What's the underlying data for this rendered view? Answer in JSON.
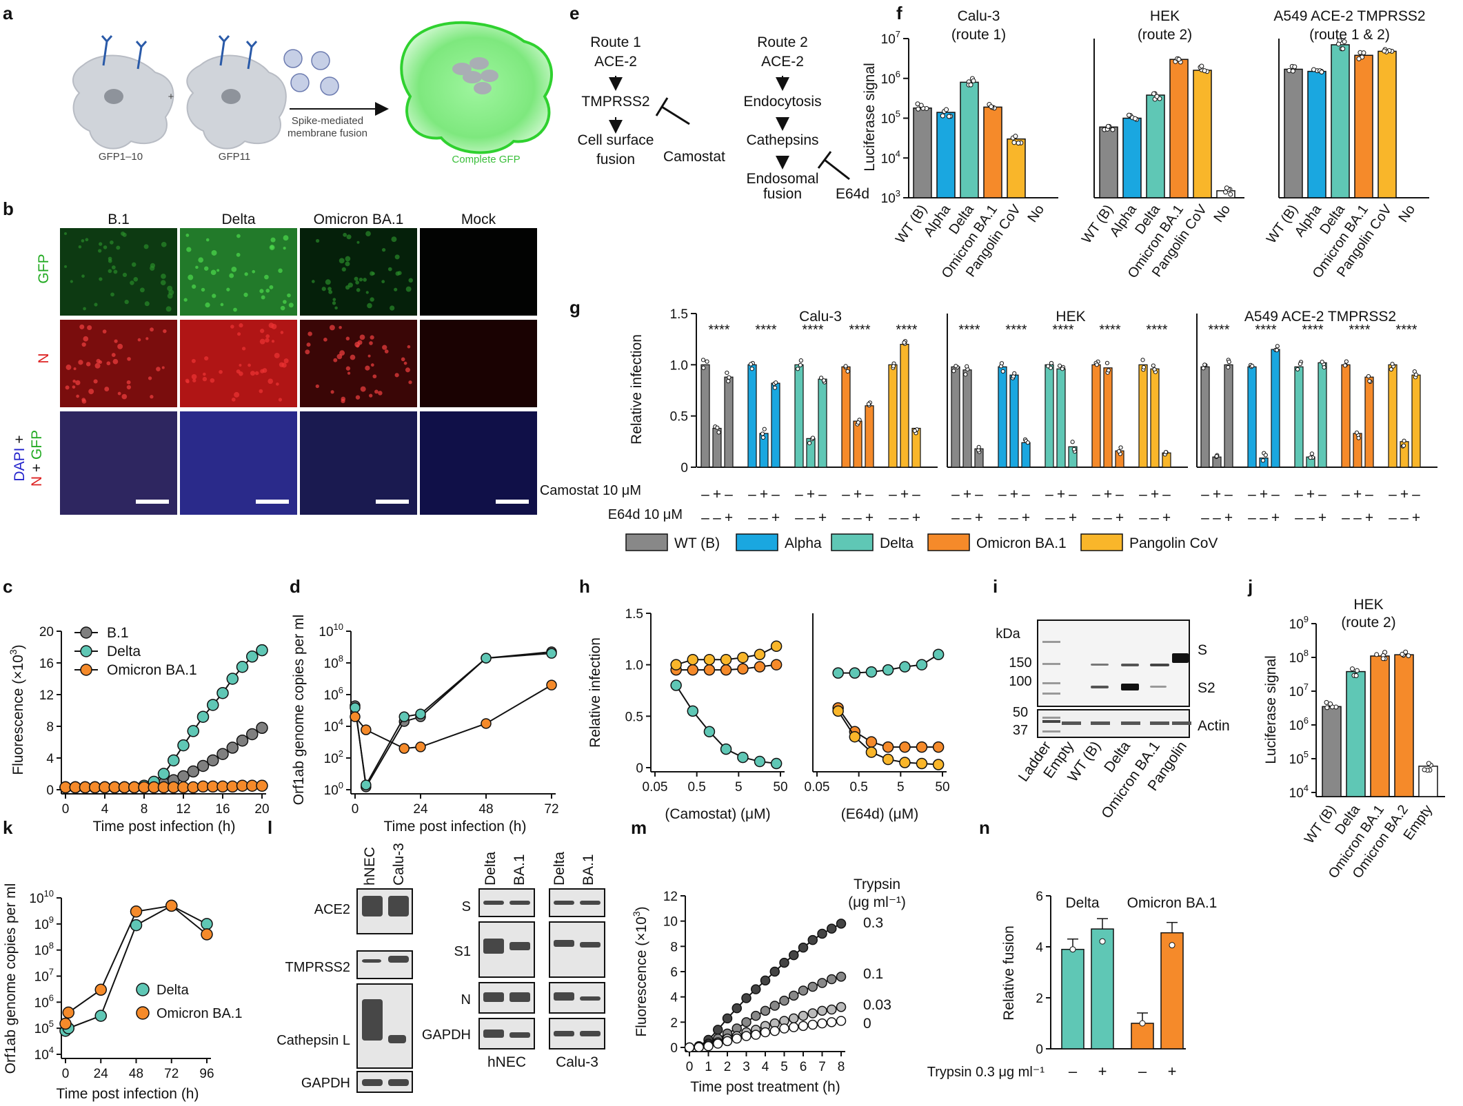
{
  "figure": {
    "panel_labels": {
      "a": "a",
      "b": "b",
      "c": "c",
      "d": "d",
      "e": "e",
      "f": "f",
      "g": "g",
      "h": "h",
      "i": "i",
      "j": "j",
      "k": "k",
      "l": "l",
      "m": "m",
      "n": "n"
    },
    "panel_a": {
      "cell1": "GFP1–10",
      "plus": "+",
      "cell2": "GFP11",
      "arrow_text_1": "Spike-mediated",
      "arrow_text_2": "membrane fusion",
      "result": "Complete GFP"
    },
    "panel_b": {
      "columns": [
        "B.1",
        "Delta",
        "Omicron BA.1",
        "Mock"
      ],
      "row_gfp": "GFP",
      "row_n": "N",
      "row_merge_dapi": "DAPI",
      "row_merge_plus1": " +",
      "row_merge_n": "N",
      "row_merge_plus2": " + ",
      "row_merge_gfp": "GFP",
      "colors": {
        "gfp": "#22aa22",
        "n": "#dd2222",
        "dapi": "#2222cc"
      }
    },
    "panel_e": {
      "route1": [
        "Route 1",
        "ACE-2",
        "TMPRSS2",
        "Cell surface",
        "fusion"
      ],
      "route2": [
        "Route 2",
        "ACE-2",
        "Endocytosis",
        "Cathepsins",
        "Endosomal",
        "fusion"
      ],
      "inhib1": "Camostat",
      "inhib2": "E64d"
    },
    "panel_f": {
      "ylabel": "Luciferase signal",
      "yticks": [
        "10",
        "10",
        "10",
        "10",
        "10"
      ],
      "yexp": [
        "3",
        "4",
        "5",
        "6",
        "7"
      ]
    },
    "panel_g": {
      "ylabel": "Relative infection",
      "yticks": [
        "0",
        "0.5",
        "1.0",
        "1.5"
      ],
      "row_camostat": "Camostat 10 μM",
      "row_e64d": "E64d 10 μM",
      "sig": "****",
      "plus": "+",
      "minus": "–"
    },
    "legend_g": [
      "WT (B)",
      "Alpha",
      "Delta",
      "Omicron BA.1",
      "Pangolin CoV"
    ],
    "panel_c": {
      "ylabel_main": "Fluorescence (×10",
      "ylabel_exp": "3",
      "ylabel_close": ")",
      "xlabel": "Time post infection (h)",
      "xticks": [
        "0",
        "4",
        "8",
        "12",
        "16",
        "20"
      ],
      "yticks": [
        "0",
        "4",
        "8",
        "12",
        "16",
        "20"
      ]
    },
    "panel_d": {
      "ylabel": "Orf1ab genome copies per ml",
      "xlabel": "Time post infection (h)",
      "xticks": [
        "0",
        "24",
        "48",
        "72"
      ],
      "yexp": [
        "0",
        "2",
        "4",
        "6",
        "8",
        "10"
      ],
      "ybase": "10"
    },
    "panel_h": {
      "ylabel": "Relative infection",
      "xlabel_left": "(Camostat) (μM)",
      "xlabel_right": "(E64d) (μM)",
      "xticks": [
        "0.05",
        "0.5",
        "5",
        "50"
      ],
      "yticks": [
        "0",
        "0.5",
        "1.0",
        "1.5"
      ]
    },
    "panel_i": {
      "kda": "kDa",
      "markers": [
        "150",
        "100",
        "50",
        "37"
      ],
      "band_s": "S",
      "band_s2": "S2",
      "band_actin": "Actin",
      "lanes": [
        "Ladder",
        "Empty",
        "WT (B)",
        "Delta",
        "Omicron BA.1",
        "Pangolin"
      ]
    },
    "panel_j": {
      "title1": "HEK",
      "title2": "(route 2)",
      "ylabel": "Luciferase signal",
      "ybase": "10",
      "yexp": [
        "4",
        "5",
        "6",
        "7",
        "8",
        "9"
      ],
      "cats": [
        "WT (B)",
        "Delta",
        "Omicron BA.1",
        "Omicron BA.2",
        "Empty"
      ]
    },
    "panel_k": {
      "ylabel": "Orf1ab genome copies per ml",
      "xlabel": "Time post infection (h)",
      "xticks": [
        "0",
        "24",
        "48",
        "72",
        "96"
      ],
      "ybase": "10",
      "yexp": [
        "4",
        "5",
        "6",
        "7",
        "8",
        "9",
        "10"
      ],
      "legend": [
        "Delta",
        "Omicron BA.1"
      ]
    },
    "panel_l": {
      "cols_left": [
        "hNEC",
        "Calu-3"
      ],
      "rows_left": [
        "ACE2",
        "TMPRSS2",
        "Cathepsin L",
        "GAPDH"
      ],
      "cols_right": [
        "Delta",
        "BA.1",
        "Delta",
        "BA.1"
      ],
      "rows_right": [
        "S",
        "S1",
        "N",
        "GAPDH"
      ],
      "group_labels": [
        "hNEC",
        "Calu-3"
      ]
    },
    "panel_m": {
      "ylabel_main": "Fluorescence (×10",
      "ylabel_exp": "3",
      "ylabel_close": ")",
      "xlabel": "Time post treatment (h)",
      "xticks": [
        "0",
        "1",
        "2",
        "3",
        "4",
        "5",
        "6",
        "7",
        "8"
      ],
      "yticks": [
        "0",
        "2",
        "4",
        "6",
        "8",
        "10",
        "12"
      ],
      "legend_title1": "Trypsin",
      "legend_title2": "(μg ml⁻¹)",
      "conc": [
        "0.3",
        "0.1",
        "0.03",
        "0"
      ]
    },
    "panel_n": {
      "ylabel": "Relative fusion",
      "yticks": [
        "0",
        "2",
        "4",
        "6"
      ],
      "label_delta": "Delta",
      "label_omicron": "Omicron BA.1",
      "row_label": "Trypsin 0.3 μg ml⁻¹",
      "signs": [
        "–",
        "+",
        "–",
        "+"
      ]
    }
  },
  "colors": {
    "wt": "#888888",
    "alpha": "#1aa7e0",
    "delta": "#5fc7b5",
    "omicron": "#f58a2a",
    "pangolin": "#f9b62a",
    "b1": "#7f7f7f",
    "dark": "#444444"
  },
  "chart_data": [
    {
      "id": "f",
      "type": "bar",
      "title": [
        "Calu-3 (route 1)",
        "HEK (route 2)",
        "A549 ACE-2 TMPRSS2 (route 1 & 2)"
      ],
      "ylabel": "Luciferase signal",
      "yscale": "log",
      "ylim": [
        1000,
        10000000
      ],
      "categories": [
        "WT (B)",
        "Alpha",
        "Delta",
        "Omicron BA.1",
        "Pangolin CoV",
        "No"
      ],
      "groups": [
        {
          "name": "Calu-3",
          "values": [
            180000,
            140000,
            800000,
            190000,
            30000,
            0
          ]
        },
        {
          "name": "HEK",
          "values": [
            60000,
            100000,
            380000,
            3000000,
            1600000,
            1500
          ]
        },
        {
          "name": "A549 ACE-2 TMPRSS2",
          "values": [
            1700000,
            1500000,
            7000000,
            3800000,
            4800000,
            0
          ]
        }
      ]
    },
    {
      "id": "g",
      "type": "bar",
      "title": [
        "Calu-3",
        "HEK",
        "A549 ACE-2 TMPRSS2"
      ],
      "ylabel": "Relative infection",
      "ylim": [
        0,
        1.5
      ],
      "conditions": [
        "none",
        "Camostat",
        "E64d"
      ],
      "variants": [
        "WT (B)",
        "Alpha",
        "Delta",
        "Omicron BA.1",
        "Pangolin CoV"
      ],
      "groups": [
        {
          "name": "Calu-3",
          "values": [
            [
              1.0,
              0.38,
              0.88
            ],
            [
              1.0,
              0.33,
              0.82
            ],
            [
              1.0,
              0.28,
              0.86
            ],
            [
              0.98,
              0.45,
              0.6
            ],
            [
              1.0,
              1.2,
              0.38
            ]
          ]
        },
        {
          "name": "HEK",
          "values": [
            [
              0.98,
              0.95,
              0.18
            ],
            [
              0.98,
              0.9,
              0.24
            ],
            [
              1.0,
              0.96,
              0.2
            ],
            [
              1.0,
              0.97,
              0.16
            ],
            [
              1.0,
              0.96,
              0.14
            ]
          ]
        },
        {
          "name": "A549 ACE-2 TMPRSS2",
          "values": [
            [
              0.98,
              0.1,
              1.0
            ],
            [
              0.98,
              0.09,
              1.15
            ],
            [
              0.98,
              0.1,
              1.02
            ],
            [
              1.0,
              0.33,
              0.88
            ],
            [
              1.0,
              0.25,
              0.9
            ]
          ]
        }
      ]
    },
    {
      "id": "c",
      "type": "line",
      "xlabel": "Time post infection (h)",
      "ylabel": "Fluorescence (×10³)",
      "xlim": [
        0,
        20
      ],
      "ylim": [
        0,
        20
      ],
      "x": [
        0,
        1,
        2,
        3,
        4,
        5,
        6,
        7,
        8,
        9,
        10,
        11,
        12,
        13,
        14,
        15,
        16,
        17,
        18,
        19,
        20
      ],
      "series": [
        {
          "name": "B.1",
          "values": [
            0.3,
            0.3,
            0.3,
            0.3,
            0.3,
            0.3,
            0.3,
            0.3,
            0.3,
            0.5,
            0.8,
            1.2,
            1.7,
            2.3,
            3.0,
            3.7,
            4.5,
            5.3,
            6.2,
            7.0,
            7.8
          ]
        },
        {
          "name": "Delta",
          "values": [
            0.3,
            0.3,
            0.3,
            0.3,
            0.3,
            0.3,
            0.3,
            0.3,
            0.5,
            1.0,
            2.0,
            3.7,
            5.6,
            7.4,
            9.2,
            10.7,
            12.2,
            14.0,
            15.5,
            16.8,
            17.6
          ]
        },
        {
          "name": "Omicron BA.1",
          "values": [
            0.3,
            0.3,
            0.3,
            0.3,
            0.3,
            0.3,
            0.3,
            0.3,
            0.3,
            0.3,
            0.3,
            0.3,
            0.3,
            0.3,
            0.4,
            0.4,
            0.4,
            0.4,
            0.5,
            0.5,
            0.5
          ]
        }
      ]
    },
    {
      "id": "d",
      "type": "line",
      "yscale": "log",
      "xlabel": "Time post infection (h)",
      "ylabel": "Orf1ab genome copies per ml",
      "xlim": [
        0,
        72
      ],
      "ylim": [
        1,
        10000000000
      ],
      "x": [
        0,
        4,
        18,
        24,
        48,
        72
      ],
      "series": [
        {
          "name": "B.1",
          "values": [
            200000,
            1.5,
            20000,
            40000,
            200000000,
            500000000
          ]
        },
        {
          "name": "Delta",
          "values": [
            150000,
            2,
            40000,
            60000,
            200000000,
            400000000
          ]
        },
        {
          "name": "Omicron BA.1",
          "values": [
            40000,
            6000,
            400,
            500,
            15000,
            4000000
          ]
        }
      ]
    },
    {
      "id": "h",
      "type": "line",
      "xscale": "log",
      "ylabel": "Relative infection",
      "ylim": [
        0,
        1.5
      ],
      "panels": [
        {
          "xlabel": "(Camostat) (μM)",
          "x": [
            0.16,
            0.4,
            1.0,
            2.5,
            6.3,
            16,
            40
          ],
          "series": [
            {
              "name": "Delta",
              "values": [
                0.8,
                0.55,
                0.35,
                0.18,
                0.1,
                0.06,
                0.04
              ]
            },
            {
              "name": "Omicron BA.1",
              "values": [
                0.95,
                0.95,
                0.95,
                0.95,
                0.96,
                0.98,
                1.0
              ]
            },
            {
              "name": "Pangolin CoV",
              "values": [
                1.0,
                1.05,
                1.05,
                1.05,
                1.07,
                1.1,
                1.18
              ]
            }
          ]
        },
        {
          "xlabel": "(E64d) (μM)",
          "x": [
            0.16,
            0.4,
            1.0,
            2.5,
            6.3,
            16,
            40
          ],
          "series": [
            {
              "name": "Delta",
              "values": [
                0.92,
                0.92,
                0.93,
                0.95,
                0.98,
                1.0,
                1.1
              ]
            },
            {
              "name": "Omicron BA.1",
              "values": [
                0.58,
                0.35,
                0.25,
                0.2,
                0.2,
                0.2,
                0.2
              ]
            },
            {
              "name": "Pangolin CoV",
              "values": [
                0.55,
                0.3,
                0.15,
                0.08,
                0.05,
                0.04,
                0.03
              ]
            }
          ]
        }
      ]
    },
    {
      "id": "j",
      "type": "bar",
      "yscale": "log",
      "title": "HEK (route 2)",
      "ylabel": "Luciferase signal",
      "ylim": [
        10000,
        1000000000
      ],
      "categories": [
        "WT (B)",
        "Delta",
        "Omicron BA.1",
        "Omicron BA.2",
        "Empty"
      ],
      "values": [
        3500000,
        38000000,
        110000000,
        120000000,
        60000
      ]
    },
    {
      "id": "k",
      "type": "line",
      "yscale": "log",
      "xlabel": "Time post infection (h)",
      "ylabel": "Orf1ab genome copies per ml",
      "xlim": [
        0,
        96
      ],
      "ylim": [
        10000,
        10000000000
      ],
      "x": [
        0,
        2,
        24,
        48,
        72,
        96
      ],
      "series": [
        {
          "name": "Delta",
          "values": [
            80000,
            100000,
            300000,
            900000000,
            5000000000,
            1000000000
          ]
        },
        {
          "name": "Omicron BA.1",
          "values": [
            150000,
            400000,
            3000000,
            3000000000,
            5000000000,
            400000000
          ]
        }
      ]
    },
    {
      "id": "m",
      "type": "line",
      "xlabel": "Time post treatment (h)",
      "ylabel": "Fluorescence (×10³)",
      "xlim": [
        0,
        8
      ],
      "ylim": [
        0,
        12
      ],
      "x": [
        0,
        0.5,
        1,
        1.5,
        2,
        2.5,
        3,
        3.5,
        4,
        4.5,
        5,
        5.5,
        6,
        6.5,
        7,
        7.5,
        8
      ],
      "series": [
        {
          "name": "0.3",
          "values": [
            0,
            0.1,
            0.6,
            1.4,
            2.3,
            3.1,
            3.9,
            4.6,
            5.3,
            6.0,
            6.7,
            7.3,
            7.9,
            8.5,
            9.0,
            9.4,
            9.8
          ]
        },
        {
          "name": "0.1",
          "values": [
            0,
            0.05,
            0.3,
            0.7,
            1.1,
            1.5,
            2.0,
            2.5,
            2.9,
            3.3,
            3.7,
            4.1,
            4.5,
            4.8,
            5.1,
            5.4,
            5.6
          ]
        },
        {
          "name": "0.03",
          "values": [
            0,
            0.05,
            0.2,
            0.4,
            0.7,
            0.9,
            1.2,
            1.4,
            1.7,
            1.9,
            2.1,
            2.3,
            2.5,
            2.7,
            2.9,
            3.0,
            3.2
          ]
        },
        {
          "name": "0",
          "values": [
            0,
            0.02,
            0.1,
            0.3,
            0.5,
            0.7,
            0.9,
            1.0,
            1.2,
            1.3,
            1.5,
            1.6,
            1.7,
            1.8,
            1.9,
            2.0,
            2.1
          ]
        }
      ]
    },
    {
      "id": "n",
      "type": "bar",
      "ylabel": "Relative fusion",
      "ylim": [
        0,
        6
      ],
      "categories": [
        "Delta –",
        "Delta +",
        "Omicron BA.1 –",
        "Omicron BA.1 +"
      ],
      "values": [
        3.9,
        4.7,
        1.0,
        4.55
      ]
    }
  ]
}
